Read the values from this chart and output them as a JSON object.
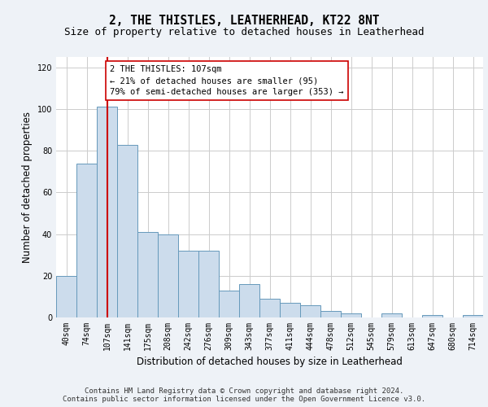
{
  "title": "2, THE THISTLES, LEATHERHEAD, KT22 8NT",
  "subtitle": "Size of property relative to detached houses in Leatherhead",
  "xlabel": "Distribution of detached houses by size in Leatherhead",
  "ylabel": "Number of detached properties",
  "bar_labels": [
    "40sqm",
    "74sqm",
    "107sqm",
    "141sqm",
    "175sqm",
    "208sqm",
    "242sqm",
    "276sqm",
    "309sqm",
    "343sqm",
    "377sqm",
    "411sqm",
    "444sqm",
    "478sqm",
    "512sqm",
    "545sqm",
    "579sqm",
    "613sqm",
    "647sqm",
    "680sqm",
    "714sqm"
  ],
  "bar_heights": [
    20,
    74,
    101,
    83,
    41,
    40,
    32,
    32,
    13,
    16,
    9,
    7,
    6,
    3,
    2,
    0,
    2,
    0,
    1,
    0,
    1
  ],
  "bar_color": "#ccdcec",
  "bar_edge_color": "#6699bb",
  "bar_edge_width": 0.7,
  "red_line_index": 2,
  "red_line_color": "#cc0000",
  "annotation_text": "2 THE THISTLES: 107sqm\n← 21% of detached houses are smaller (95)\n79% of semi-detached houses are larger (353) →",
  "annotation_box_color": "#ffffff",
  "annotation_box_edge": "#cc0000",
  "ylim": [
    0,
    125
  ],
  "yticks": [
    0,
    20,
    40,
    60,
    80,
    100,
    120
  ],
  "grid_color": "#cccccc",
  "bg_color": "#eef2f7",
  "plot_bg_color": "#ffffff",
  "footer_line1": "Contains HM Land Registry data © Crown copyright and database right 2024.",
  "footer_line2": "Contains public sector information licensed under the Open Government Licence v3.0.",
  "title_fontsize": 10.5,
  "subtitle_fontsize": 9,
  "xlabel_fontsize": 8.5,
  "ylabel_fontsize": 8.5,
  "tick_fontsize": 7,
  "annotation_fontsize": 7.5,
  "footer_fontsize": 6.5
}
